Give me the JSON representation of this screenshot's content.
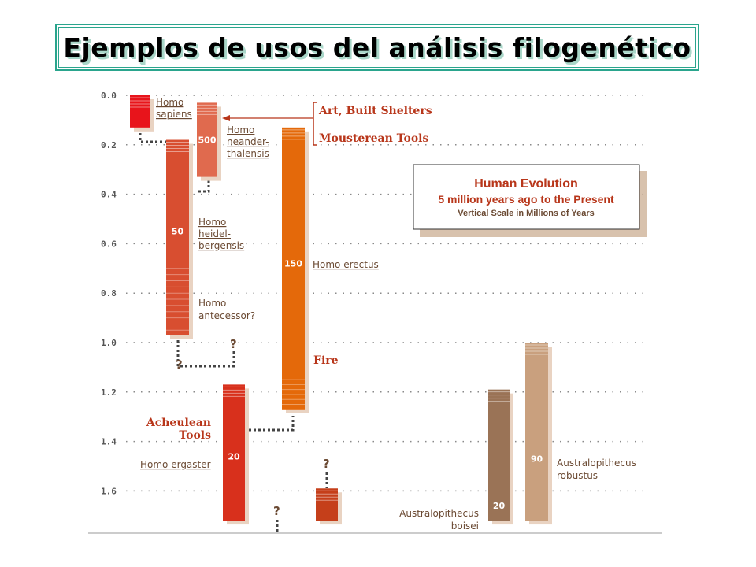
{
  "title": "Ejemplos de usos del análisis filogenético",
  "legend_box": {
    "title": "Human Evolution",
    "subtitle": "5 million years ago to the Present",
    "note": "Vertical Scale in Millions of Years"
  },
  "colors": {
    "sapiens": "#e8141b",
    "neanderthalensis": "#e06a4e",
    "heidelbergensis": "#d84e30",
    "erectus": "#e4690a",
    "ergaster": "#d8301c",
    "lower_bar": "#c53f1a",
    "boisei": "#9a7356",
    "robustus": "#c9a07e",
    "label": "#6b4a33",
    "event": "#b8361a",
    "title_border": "#2aa58d"
  },
  "chart_data": {
    "type": "range-bar",
    "y_axis_ticks": [
      "0.0",
      "0.2",
      "0.4",
      "0.6",
      "0.8",
      "1.0",
      "1.2",
      "1.4",
      "1.6"
    ],
    "ylim": [
      0,
      1.72
    ],
    "species": [
      {
        "name": "Homo sapiens",
        "label_lines": [
          "Homo",
          "sapiens"
        ],
        "start": 0.0,
        "end": 0.13,
        "count": "",
        "color": "sapiens"
      },
      {
        "name": "Homo neanderthalensis",
        "label_lines": [
          "Homo",
          "neander-",
          "thalensis"
        ],
        "start": 0.03,
        "end": 0.33,
        "count": "500",
        "color": "neanderthalensis"
      },
      {
        "name": "Homo heidelbergensis",
        "label_lines": [
          "Homo",
          "heidel-",
          "bergensis"
        ],
        "start": 0.18,
        "end": 0.97,
        "count": "50",
        "color": "heidelbergensis"
      },
      {
        "name": "Homo antecessor?",
        "label_lines": [
          "Homo",
          "antecessor?"
        ],
        "start": null,
        "end": null,
        "count": "",
        "color": "heidelbergensis"
      },
      {
        "name": "Homo erectus",
        "label_lines": [
          "Homo erectus"
        ],
        "start": 0.13,
        "end": 1.27,
        "count": "150",
        "color": "erectus"
      },
      {
        "name": "Homo ergaster",
        "label_lines": [
          "Homo ergaster"
        ],
        "start": 1.17,
        "end": 1.72,
        "count": "20",
        "color": "ergaster"
      },
      {
        "name": "",
        "label_lines": [],
        "start": 1.59,
        "end": 1.72,
        "count": "",
        "color": "lower_bar"
      },
      {
        "name": "Australopithecus boisei",
        "label_lines": [
          "Australopithecus",
          "boisei"
        ],
        "start": 1.19,
        "end": 1.72,
        "count": "20",
        "color": "boisei"
      },
      {
        "name": "Australopithecus robustus",
        "label_lines": [
          "Australopithecus",
          "robustus"
        ],
        "start": 1.0,
        "end": 1.72,
        "count": "90",
        "color": "robustus"
      }
    ],
    "events": [
      {
        "label": "Art, Built Shelters",
        "at": 0.06
      },
      {
        "label": "Mousterean Tools",
        "at": 0.17
      },
      {
        "label": "Fire",
        "at": 1.05
      },
      {
        "label": "Acheulean Tools",
        "label_lines": [
          "Acheulean",
          "Tools"
        ],
        "at": 1.33
      }
    ],
    "unknown_marks": [
      "?",
      "?",
      "?",
      "?"
    ]
  }
}
